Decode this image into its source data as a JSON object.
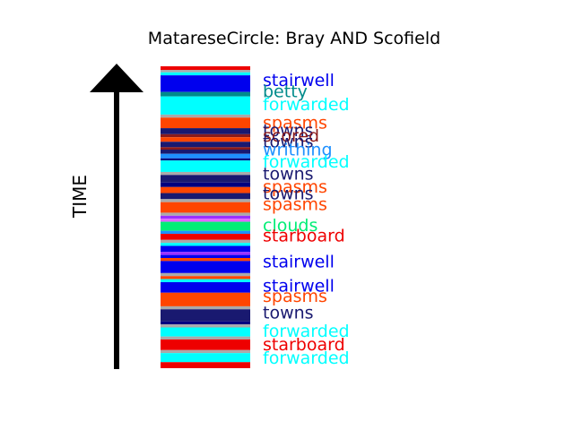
{
  "chart_data": {
    "type": "bar",
    "title": "MatareseCircle: Bray AND Scofield",
    "ylabel": "TIME",
    "xlabel": "",
    "colors": {
      "stairwell": "#0000ee",
      "betty": "#008b8b",
      "forwarded": "#00ffff",
      "spasms": "#ff4500",
      "towns": "#191970",
      "scored": "#8b1a1a",
      "writhing": "#1e90ff",
      "clouds": "#00ee76",
      "starboard": "#ee0000",
      "edge": "#ee0000",
      "grey": "#aaaaaa",
      "purple": "#9b30ff",
      "pink": "#e066ff",
      "navy": "#000080"
    },
    "stripes": [
      {
        "start": 0.0,
        "end": 0.012,
        "color": "edge"
      },
      {
        "start": 0.012,
        "end": 0.02,
        "color": "grey"
      },
      {
        "start": 0.02,
        "end": 0.03,
        "color": "forwarded"
      },
      {
        "start": 0.03,
        "end": 0.085,
        "color": "stairwell"
      },
      {
        "start": 0.085,
        "end": 0.1,
        "color": "betty"
      },
      {
        "start": 0.1,
        "end": 0.16,
        "color": "forwarded"
      },
      {
        "start": 0.16,
        "end": 0.17,
        "color": "grey"
      },
      {
        "start": 0.17,
        "end": 0.205,
        "color": "spasms"
      },
      {
        "start": 0.205,
        "end": 0.225,
        "color": "towns"
      },
      {
        "start": 0.225,
        "end": 0.235,
        "color": "scored"
      },
      {
        "start": 0.235,
        "end": 0.25,
        "color": "spasms"
      },
      {
        "start": 0.25,
        "end": 0.268,
        "color": "towns"
      },
      {
        "start": 0.268,
        "end": 0.276,
        "color": "scored"
      },
      {
        "start": 0.276,
        "end": 0.29,
        "color": "towns"
      },
      {
        "start": 0.29,
        "end": 0.305,
        "color": "writhing"
      },
      {
        "start": 0.305,
        "end": 0.312,
        "color": "navy"
      },
      {
        "start": 0.312,
        "end": 0.35,
        "color": "forwarded"
      },
      {
        "start": 0.35,
        "end": 0.36,
        "color": "grey"
      },
      {
        "start": 0.36,
        "end": 0.385,
        "color": "towns"
      },
      {
        "start": 0.385,
        "end": 0.4,
        "color": "navy"
      },
      {
        "start": 0.4,
        "end": 0.42,
        "color": "spasms"
      },
      {
        "start": 0.42,
        "end": 0.44,
        "color": "towns"
      },
      {
        "start": 0.44,
        "end": 0.45,
        "color": "grey"
      },
      {
        "start": 0.45,
        "end": 0.485,
        "color": "spasms"
      },
      {
        "start": 0.485,
        "end": 0.495,
        "color": "grey"
      },
      {
        "start": 0.495,
        "end": 0.505,
        "color": "purple"
      },
      {
        "start": 0.505,
        "end": 0.515,
        "color": "pink"
      },
      {
        "start": 0.515,
        "end": 0.545,
        "color": "clouds"
      },
      {
        "start": 0.545,
        "end": 0.555,
        "color": "writhing"
      },
      {
        "start": 0.555,
        "end": 0.575,
        "color": "starboard"
      },
      {
        "start": 0.575,
        "end": 0.585,
        "color": "grey"
      },
      {
        "start": 0.585,
        "end": 0.595,
        "color": "forwarded"
      },
      {
        "start": 0.595,
        "end": 0.615,
        "color": "stairwell"
      },
      {
        "start": 0.615,
        "end": 0.625,
        "color": "purple"
      },
      {
        "start": 0.625,
        "end": 0.635,
        "color": "stairwell"
      },
      {
        "start": 0.635,
        "end": 0.645,
        "color": "spasms"
      },
      {
        "start": 0.645,
        "end": 0.685,
        "color": "stairwell"
      },
      {
        "start": 0.685,
        "end": 0.695,
        "color": "grey"
      },
      {
        "start": 0.695,
        "end": 0.705,
        "color": "spasms"
      },
      {
        "start": 0.705,
        "end": 0.715,
        "color": "forwarded"
      },
      {
        "start": 0.715,
        "end": 0.75,
        "color": "stairwell"
      },
      {
        "start": 0.75,
        "end": 0.795,
        "color": "spasms"
      },
      {
        "start": 0.795,
        "end": 0.805,
        "color": "grey"
      },
      {
        "start": 0.805,
        "end": 0.845,
        "color": "towns"
      },
      {
        "start": 0.845,
        "end": 0.855,
        "color": "navy"
      },
      {
        "start": 0.855,
        "end": 0.865,
        "color": "grey"
      },
      {
        "start": 0.865,
        "end": 0.895,
        "color": "forwarded"
      },
      {
        "start": 0.895,
        "end": 0.905,
        "color": "grey"
      },
      {
        "start": 0.905,
        "end": 0.94,
        "color": "starboard"
      },
      {
        "start": 0.94,
        "end": 0.95,
        "color": "grey"
      },
      {
        "start": 0.95,
        "end": 0.98,
        "color": "forwarded"
      },
      {
        "start": 0.98,
        "end": 1.0,
        "color": "edge"
      }
    ],
    "labels": [
      {
        "text": "stairwell",
        "color": "stairwell",
        "pos": 0.045
      },
      {
        "text": "betty",
        "color": "betty",
        "pos": 0.082
      },
      {
        "text": "forwarded",
        "color": "forwarded",
        "pos": 0.125
      },
      {
        "text": "spasms",
        "color": "spasms",
        "pos": 0.185
      },
      {
        "text": "towns",
        "color": "towns",
        "pos": 0.21
      },
      {
        "text": "scored",
        "color": "scored",
        "pos": 0.228
      },
      {
        "text": "towns",
        "color": "towns",
        "pos": 0.248
      },
      {
        "text": "writhing",
        "color": "writhing",
        "pos": 0.275
      },
      {
        "text": "forwarded",
        "color": "forwarded",
        "pos": 0.315
      },
      {
        "text": "towns",
        "color": "towns",
        "pos": 0.355
      },
      {
        "text": "spasms",
        "color": "spasms",
        "pos": 0.398
      },
      {
        "text": "towns",
        "color": "towns",
        "pos": 0.42
      },
      {
        "text": "spasms",
        "color": "spasms",
        "pos": 0.455
      },
      {
        "text": "clouds",
        "color": "clouds",
        "pos": 0.525
      },
      {
        "text": "starboard",
        "color": "starboard",
        "pos": 0.56
      },
      {
        "text": "stairwell",
        "color": "stairwell",
        "pos": 0.645
      },
      {
        "text": "stairwell",
        "color": "stairwell",
        "pos": 0.725
      },
      {
        "text": "spasms",
        "color": "spasms",
        "pos": 0.76
      },
      {
        "text": "towns",
        "color": "towns",
        "pos": 0.815
      },
      {
        "text": "forwarded",
        "color": "forwarded",
        "pos": 0.875
      },
      {
        "text": "starboard",
        "color": "starboard",
        "pos": 0.92
      },
      {
        "text": "forwarded",
        "color": "forwarded",
        "pos": 0.965
      }
    ]
  }
}
